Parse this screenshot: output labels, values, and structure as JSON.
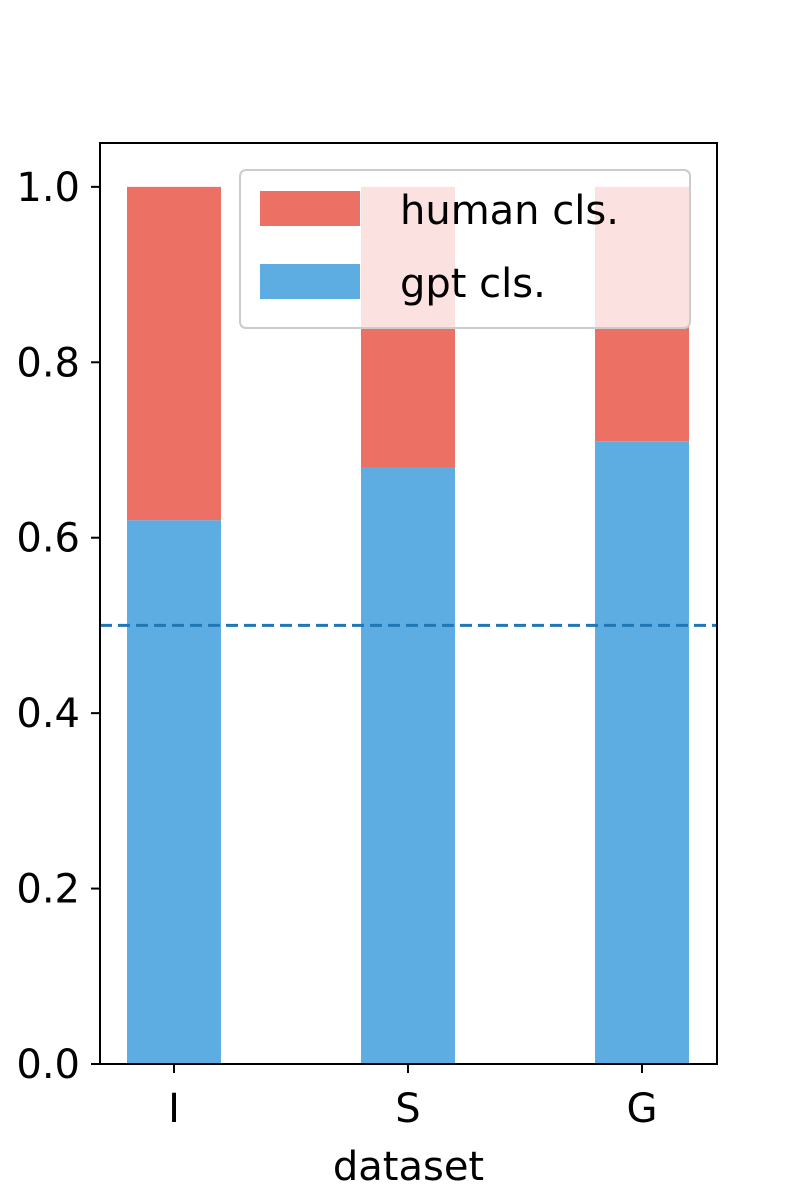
{
  "chart_data": {
    "type": "bar",
    "stacked": true,
    "categories": [
      "I",
      "S",
      "G"
    ],
    "series": [
      {
        "name": "gpt cls.",
        "values": [
          0.62,
          0.68,
          0.71
        ],
        "color": "#5dade2"
      },
      {
        "name": "human cls.",
        "values": [
          0.38,
          0.32,
          0.29
        ],
        "color": "#ec7063"
      }
    ],
    "xlabel": "dataset",
    "ylabel": "",
    "ylim": [
      0,
      1.05
    ],
    "yticks": [
      "0.0",
      "0.2",
      "0.4",
      "0.6",
      "0.8",
      "1.0"
    ],
    "reference_line": {
      "y": 0.5,
      "style": "dashed",
      "color": "#1f77b4"
    },
    "legend": {
      "placement": "top-right",
      "entries": [
        "human cls.",
        "gpt cls."
      ]
    },
    "grid": false
  }
}
